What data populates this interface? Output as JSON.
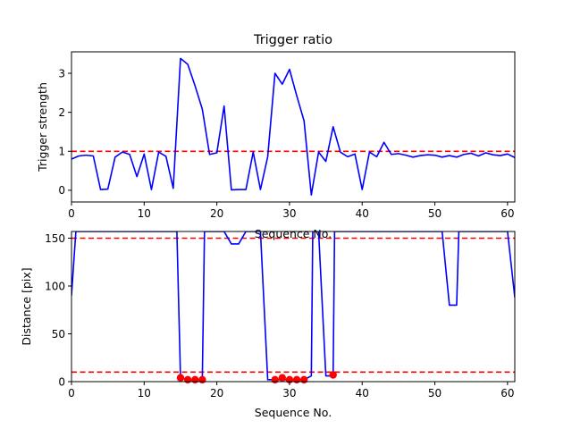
{
  "chart_data": [
    {
      "type": "line",
      "title": "Trigger ratio",
      "xlabel": "Sequence No.",
      "ylabel": "Trigger strength",
      "xlim": [
        0,
        61
      ],
      "ylim": [
        -0.3,
        3.55
      ],
      "xticks": [
        0,
        10,
        20,
        30,
        40,
        50,
        60
      ],
      "yticks": [
        0,
        1,
        2,
        3
      ],
      "grid": false,
      "series": [
        {
          "color": "#0000ff",
          "x": [
            0,
            1,
            2,
            3,
            4,
            5,
            6,
            7,
            8,
            9,
            10,
            11,
            12,
            13,
            14,
            15,
            16,
            17,
            18,
            19,
            20,
            21,
            22,
            23,
            24,
            25,
            26,
            27,
            28,
            29,
            30,
            31,
            32,
            33,
            34,
            35,
            36,
            37,
            38,
            39,
            40,
            41,
            42,
            43,
            44,
            45,
            46,
            47,
            48,
            49,
            50,
            51,
            52,
            53,
            54,
            55,
            56,
            57,
            58,
            59,
            60,
            61
          ],
          "y": [
            0.8,
            0.88,
            0.9,
            0.88,
            0.02,
            0.03,
            0.85,
            0.98,
            0.92,
            0.35,
            0.93,
            0.02,
            0.98,
            0.87,
            0.05,
            3.38,
            3.23,
            2.68,
            2.08,
            0.92,
            0.96,
            2.16,
            0.01,
            0.02,
            0.02,
            0.98,
            0.02,
            0.86,
            3.0,
            2.72,
            3.1,
            2.42,
            1.78,
            -0.12,
            0.98,
            0.74,
            1.63,
            0.98,
            0.86,
            0.93,
            0.02,
            0.98,
            0.86,
            1.23,
            0.92,
            0.94,
            0.9,
            0.85,
            0.89,
            0.91,
            0.9,
            0.85,
            0.89,
            0.85,
            0.92,
            0.95,
            0.88,
            0.96,
            0.91,
            0.89,
            0.93,
            0.84
          ]
        }
      ],
      "reference_lines": [
        {
          "y": 1.0,
          "color": "#ff0000",
          "style": "dashed"
        }
      ]
    },
    {
      "type": "line",
      "title": "",
      "xlabel": "Sequence No.",
      "ylabel": "Distance [pix]",
      "xlim": [
        0,
        61
      ],
      "ylim": [
        0,
        157
      ],
      "xticks": [
        0,
        10,
        20,
        30,
        40,
        50,
        60
      ],
      "yticks": [
        0,
        50,
        100,
        150
      ],
      "grid": false,
      "series": [
        {
          "color": "#0000ff",
          "x": [
            0,
            0.6,
            1,
            2,
            3,
            4,
            5,
            6,
            7,
            8,
            9,
            10,
            11,
            12,
            13,
            14,
            14.5,
            15,
            16,
            17,
            18,
            18.3,
            19,
            20,
            21,
            22,
            23,
            24,
            25,
            26,
            27,
            28,
            29,
            30,
            31,
            32,
            33,
            33.2,
            34,
            35,
            35.3,
            36,
            36.2,
            37,
            38,
            39,
            40,
            41,
            42,
            43,
            44,
            45,
            46,
            47,
            48,
            49,
            50,
            51,
            52,
            53,
            53.3,
            54,
            55,
            56,
            57,
            58,
            59,
            60,
            61
          ],
          "y": [
            90,
            157,
            157,
            157,
            157,
            157,
            157,
            157,
            157,
            157,
            157,
            157,
            157,
            157,
            157,
            157,
            157,
            4,
            2,
            2,
            2,
            157,
            157,
            157,
            157,
            144,
            144,
            157,
            157,
            157,
            2,
            2,
            2,
            2,
            2,
            2,
            6,
            157,
            157,
            6,
            6,
            6,
            157,
            157,
            157,
            157,
            157,
            157,
            157,
            157,
            157,
            157,
            157,
            157,
            157,
            157,
            157,
            157,
            80,
            80,
            157,
            157,
            157,
            157,
            157,
            157,
            157,
            157,
            88
          ]
        }
      ],
      "markers": {
        "color": "#ff0000",
        "x": [
          15,
          16,
          17,
          18,
          28,
          29,
          30,
          31,
          32,
          36
        ],
        "y": [
          4,
          2,
          2,
          2,
          2,
          4,
          2,
          2,
          2,
          7
        ]
      },
      "reference_lines": [
        {
          "y": 150,
          "color": "#ff0000",
          "style": "dashed"
        },
        {
          "y": 10,
          "color": "#ff0000",
          "style": "dashed"
        }
      ]
    }
  ]
}
